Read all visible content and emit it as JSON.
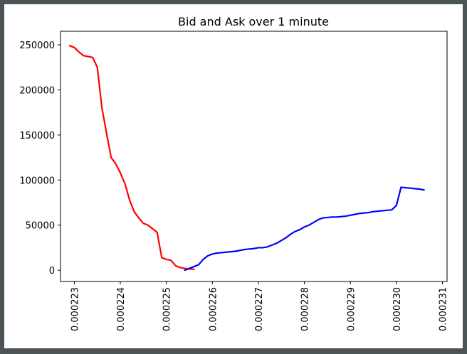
{
  "chart_data": {
    "type": "line",
    "title": "Bid and Ask over 1 minute",
    "xlabel": "",
    "ylabel": "",
    "xlim": [
      0.0002227,
      0.0002311
    ],
    "ylim": [
      -12500,
      265000
    ],
    "x_ticks": [
      0.000223,
      0.000224,
      0.000225,
      0.000226,
      0.000227,
      0.000228,
      0.000229,
      0.00023,
      0.000231
    ],
    "x_tick_labels": [
      "0.000223",
      "0.000224",
      "0.000225",
      "0.000226",
      "0.000227",
      "0.000228",
      "0.000229",
      "0.000230",
      "0.000231"
    ],
    "y_ticks": [
      0,
      50000,
      100000,
      150000,
      200000,
      250000
    ],
    "y_tick_labels": [
      "0",
      "50000",
      "100000",
      "150000",
      "200000",
      "250000"
    ],
    "grid": false,
    "legend": "none",
    "series": [
      {
        "color": "#ff0000",
        "points": [
          [
            0.0002229,
            249000
          ],
          [
            0.000223,
            247000
          ],
          [
            0.0002231,
            242000
          ],
          [
            0.0002232,
            238000
          ],
          [
            0.0002233,
            237000
          ],
          [
            0.0002234,
            236000
          ],
          [
            0.0002235,
            225000
          ],
          [
            0.0002236,
            180000
          ],
          [
            0.0002237,
            152000
          ],
          [
            0.0002238,
            125000
          ],
          [
            0.0002239,
            118000
          ],
          [
            0.000224,
            108000
          ],
          [
            0.0002241,
            96000
          ],
          [
            0.0002242,
            78000
          ],
          [
            0.0002243,
            65000
          ],
          [
            0.0002244,
            58000
          ],
          [
            0.0002245,
            52000
          ],
          [
            0.0002246,
            50000
          ],
          [
            0.0002247,
            46000
          ],
          [
            0.0002248,
            42000
          ],
          [
            0.0002249,
            14000
          ],
          [
            0.000225,
            12000
          ],
          [
            0.0002251,
            11000
          ],
          [
            0.0002252,
            5000
          ],
          [
            0.0002253,
            3000
          ],
          [
            0.0002254,
            2000
          ],
          [
            0.0002255,
            1500
          ],
          [
            0.0002256,
            1000
          ]
        ]
      },
      {
        "color": "#0000ff",
        "points": [
          [
            0.0002254,
            0
          ],
          [
            0.0002255,
            2000
          ],
          [
            0.0002256,
            4000
          ],
          [
            0.0002257,
            6000
          ],
          [
            0.0002258,
            12000
          ],
          [
            0.0002259,
            16000
          ],
          [
            0.000226,
            18000
          ],
          [
            0.0002261,
            19000
          ],
          [
            0.0002262,
            19500
          ],
          [
            0.0002263,
            20000
          ],
          [
            0.0002264,
            20500
          ],
          [
            0.0002265,
            21000
          ],
          [
            0.0002266,
            22000
          ],
          [
            0.0002267,
            23000
          ],
          [
            0.0002268,
            23500
          ],
          [
            0.0002269,
            24000
          ],
          [
            0.000227,
            25000
          ],
          [
            0.0002271,
            25000
          ],
          [
            0.0002272,
            26000
          ],
          [
            0.0002273,
            28000
          ],
          [
            0.0002274,
            30000
          ],
          [
            0.0002275,
            33000
          ],
          [
            0.0002276,
            36000
          ],
          [
            0.0002277,
            40000
          ],
          [
            0.0002278,
            43000
          ],
          [
            0.0002279,
            45000
          ],
          [
            0.000228,
            48000
          ],
          [
            0.0002281,
            50000
          ],
          [
            0.0002282,
            53000
          ],
          [
            0.0002283,
            56000
          ],
          [
            0.0002284,
            58000
          ],
          [
            0.0002285,
            58500
          ],
          [
            0.0002286,
            59000
          ],
          [
            0.0002287,
            59000
          ],
          [
            0.0002288,
            59500
          ],
          [
            0.0002289,
            60000
          ],
          [
            0.000229,
            61000
          ],
          [
            0.0002291,
            62000
          ],
          [
            0.0002292,
            63000
          ],
          [
            0.0002293,
            63500
          ],
          [
            0.0002294,
            64000
          ],
          [
            0.0002295,
            65000
          ],
          [
            0.0002296,
            65500
          ],
          [
            0.0002297,
            66000
          ],
          [
            0.0002298,
            66500
          ],
          [
            0.0002299,
            67000
          ],
          [
            0.00023,
            72000
          ],
          [
            0.0002301,
            92000
          ],
          [
            0.0002302,
            91500
          ],
          [
            0.0002303,
            91000
          ],
          [
            0.0002304,
            90500
          ],
          [
            0.0002305,
            90000
          ],
          [
            0.0002306,
            89000
          ]
        ]
      }
    ]
  }
}
